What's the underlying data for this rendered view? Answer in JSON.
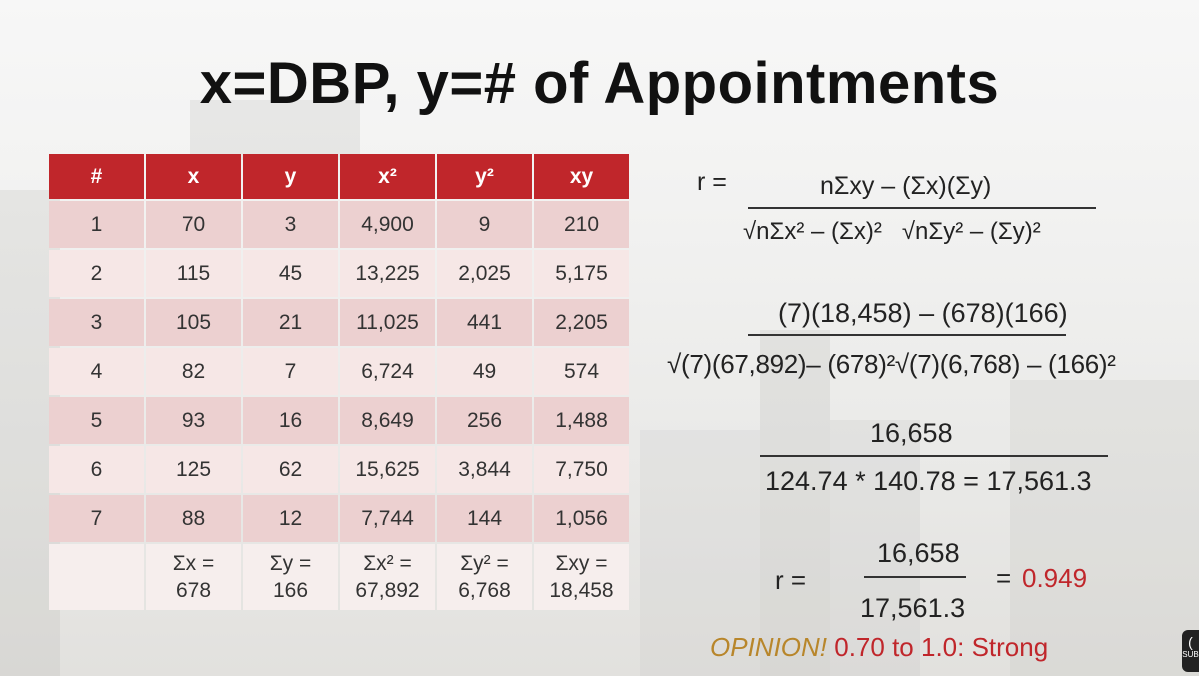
{
  "title": "x=DBP, y=# of Appointments",
  "table": {
    "headers": [
      "#",
      "x",
      "y",
      "x²",
      "y²",
      "xy"
    ],
    "rows": [
      [
        "1",
        "70",
        "3",
        "4,900",
        "9",
        "210"
      ],
      [
        "2",
        "115",
        "45",
        "13,225",
        "2,025",
        "5,175"
      ],
      [
        "3",
        "105",
        "21",
        "11,025",
        "441",
        "2,205"
      ],
      [
        "4",
        "82",
        "7",
        "6,724",
        "49",
        "574"
      ],
      [
        "5",
        "93",
        "16",
        "8,649",
        "256",
        "1,488"
      ],
      [
        "6",
        "125",
        "62",
        "15,625",
        "3,844",
        "7,750"
      ],
      [
        "7",
        "88",
        "12",
        "7,744",
        "144",
        "1,056"
      ]
    ],
    "sums": [
      [
        "",
        ""
      ],
      [
        "Σx =",
        "678"
      ],
      [
        "Σy =",
        "166"
      ],
      [
        "Σx² =",
        "67,892"
      ],
      [
        "Σy² =",
        "6,768"
      ],
      [
        "Σxy =",
        "18,458"
      ]
    ]
  },
  "formula": {
    "r_label": "r =",
    "general_numerator": "nΣxy – (Σx)(Σy)",
    "general_denominator": "√nΣx² – (Σx)²   √nΣy² – (Σy)²",
    "sub_numerator": "(7)(18,458) – (678)(166)",
    "sub_denominator": "√(7)(67,892)– (678)²√(7)(6,768) – (166)²",
    "calc_numerator": "16,658",
    "calc_denominator": "124.74 * 140.78 = 17,561.3",
    "final_r_label": "r =",
    "final_numerator": "16,658",
    "final_denominator": "17,561.3",
    "final_equals": "=",
    "final_value": "0.949"
  },
  "opinion": {
    "label": "OPINION!",
    "text": "0.70 to 1.0: Strong"
  },
  "caption_badge": "SUB",
  "colors": {
    "header_red": "#c0262b",
    "row_dark": "#ecd0d0",
    "row_light": "#f6e7e6",
    "opinion_gold": "#b8862b"
  }
}
